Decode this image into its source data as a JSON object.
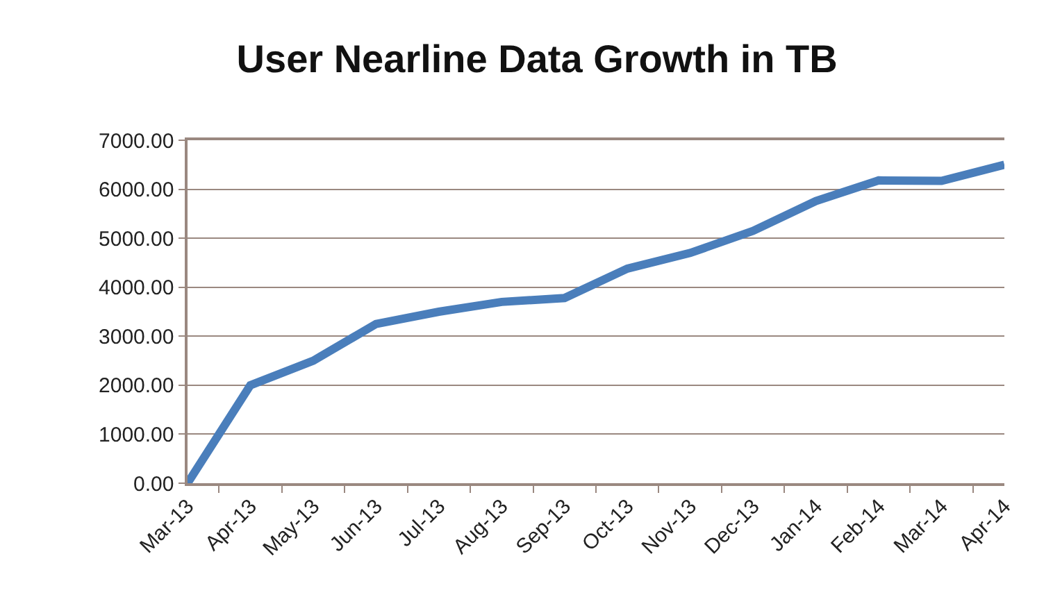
{
  "chart_data": {
    "type": "line",
    "title": "User Nearline Data Growth in TB",
    "categories": [
      "Mar-13",
      "Apr-13",
      "May-13",
      "Jun-13",
      "Jul-13",
      "Aug-13",
      "Sep-13",
      "Oct-13",
      "Nov-13",
      "Dec-13",
      "Jan-14",
      "Feb-14",
      "Mar-14",
      "Apr-14"
    ],
    "series": [
      {
        "color": "#4a7ebb",
        "values": [
          0,
          2000,
          2500,
          3250,
          3500,
          3700,
          3780,
          4380,
          4700,
          5150,
          5760,
          6180,
          6170,
          6500
        ]
      }
    ],
    "ylim": [
      0,
      7000
    ],
    "yticks": [
      {
        "value": 0,
        "label": "0.00"
      },
      {
        "value": 1000,
        "label": "1000.00"
      },
      {
        "value": 2000,
        "label": "2000.00"
      },
      {
        "value": 3000,
        "label": "3000.00"
      },
      {
        "value": 4000,
        "label": "4000.00"
      },
      {
        "value": 5000,
        "label": "5000.00"
      },
      {
        "value": 6000,
        "label": "6000.00"
      },
      {
        "value": 7000,
        "label": "7000.00"
      }
    ],
    "grid": "y",
    "marker": "none",
    "line_style": "solid"
  }
}
